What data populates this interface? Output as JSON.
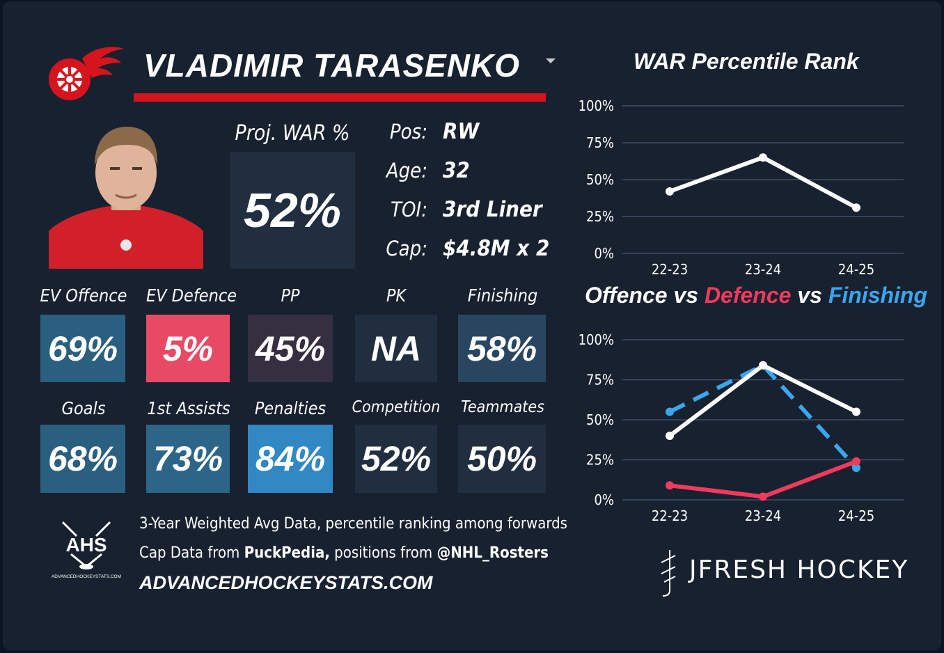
{
  "player": {
    "name": "VLADIMIR TARASENKO",
    "position_label": "Pos:",
    "position": "RW",
    "age_label": "Age:",
    "age": "32",
    "toi_label": "TOI:",
    "toi": "3rd Liner",
    "cap_label": "Cap:",
    "cap": "$4.8M x 2"
  },
  "war": {
    "label": "Proj. WAR %",
    "value": "52%"
  },
  "stats_row1": [
    {
      "label": "EV Offence",
      "value": "69%",
      "color": "#2b5f80"
    },
    {
      "label": "EV Defence",
      "value": "5%",
      "color": "#e84a65"
    },
    {
      "label": "PP",
      "value": "45%",
      "color": "#362f42"
    },
    {
      "label": "PK",
      "value": "NA",
      "color": "#212e3f"
    },
    {
      "label": "Finishing",
      "value": "58%",
      "color": "#294660"
    }
  ],
  "stats_row2": [
    {
      "label": "Goals",
      "value": "68%",
      "color": "#2b5f80"
    },
    {
      "label": "1st Assists",
      "value": "73%",
      "color": "#2c6588"
    },
    {
      "label": "Penalties",
      "value": "84%",
      "color": "#3188c3"
    },
    {
      "label": "Competition",
      "value": "52%",
      "color": "#212e3f"
    },
    {
      "label": "Teammates",
      "value": "50%",
      "color": "#212e3f"
    }
  ],
  "footer": {
    "line1": "3-Year Weighted Avg Data, percentile ranking among forwards",
    "line2_a": "Cap Data from ",
    "line2_b": "PuckPedia,",
    "line2_c": " positions from ",
    "line2_d": "@NHL_Rosters",
    "line3": "ADVANCEDHOCKEYSTATS.COM",
    "ahs_logo_text": "AHS",
    "ahs_logo_sub": "ADVANCEDHOCKEYSTATS.COM",
    "brand": "JFRESH HOCKEY"
  },
  "colors": {
    "team_red": "#d6141e",
    "defence_red": "#f23a5c",
    "finishing_blue": "#3aa6ef",
    "white": "#ffffff"
  },
  "chart_data": [
    {
      "type": "line",
      "title": "WAR Percentile Rank",
      "categories": [
        "22-23",
        "23-24",
        "24-25"
      ],
      "yticks": [
        "100%",
        "75%",
        "50%",
        "25%",
        "0%"
      ],
      "ylim": [
        0,
        100
      ],
      "series": [
        {
          "values": [
            42,
            65,
            31
          ],
          "color": "#ffffff",
          "style": "solid"
        }
      ]
    },
    {
      "type": "line",
      "title_parts": [
        {
          "text": "Offence",
          "color": "#ffffff"
        },
        {
          "text": " vs ",
          "color": "#ffffff"
        },
        {
          "text": "Defence",
          "color": "#f23a5c"
        },
        {
          "text": " vs ",
          "color": "#ffffff"
        },
        {
          "text": "Finishing",
          "color": "#3aa6ef"
        }
      ],
      "categories": [
        "22-23",
        "23-24",
        "24-25"
      ],
      "yticks": [
        "100%",
        "75%",
        "50%",
        "25%",
        "0%"
      ],
      "ylim": [
        0,
        100
      ],
      "series": [
        {
          "name": "Finishing",
          "values": [
            55,
            84,
            20
          ],
          "color": "#3aa6ef",
          "style": "dashed"
        },
        {
          "name": "Offence",
          "values": [
            40,
            84,
            55
          ],
          "color": "#ffffff",
          "style": "solid"
        },
        {
          "name": "Defence",
          "values": [
            9,
            2,
            24
          ],
          "color": "#f23a5c",
          "style": "solid"
        }
      ]
    }
  ]
}
